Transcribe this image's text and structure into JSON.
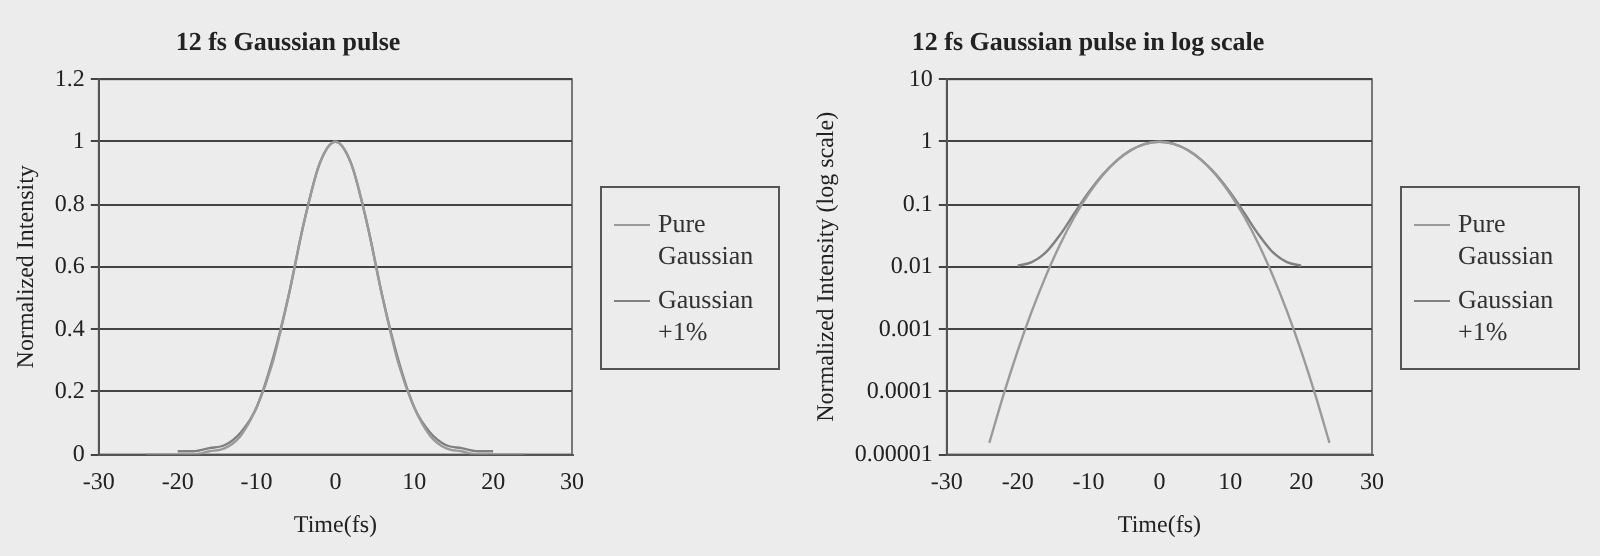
{
  "chart_data": [
    {
      "type": "line",
      "title": "12 fs Gaussian pulse",
      "xlabel": "Time(fs)",
      "ylabel": "Normalized Intensity",
      "xlim": [
        -30,
        30
      ],
      "xticks": [
        -30,
        -20,
        -10,
        0,
        10,
        20,
        30
      ],
      "ylim": [
        0,
        1.2
      ],
      "yticks": [
        0,
        0.2,
        0.4,
        0.6,
        0.8,
        1,
        1.2
      ],
      "grid": "y",
      "legend": "right",
      "series": [
        {
          "name": "Pure Gaussian",
          "color": "#9a9a9a",
          "x": [
            -24,
            -22,
            -20,
            -18,
            -16,
            -14,
            -12,
            -10,
            -8,
            -6,
            -4,
            -2,
            0,
            2,
            4,
            6,
            8,
            10,
            12,
            14,
            16,
            18,
            20,
            22,
            24
          ],
          "values": [
            0,
            0,
            0,
            0,
            0.01,
            0.02,
            0.06,
            0.15,
            0.29,
            0.5,
            0.74,
            0.93,
            1,
            0.93,
            0.74,
            0.5,
            0.29,
            0.15,
            0.06,
            0.02,
            0.01,
            0,
            0,
            0,
            0
          ]
        },
        {
          "name": "Gaussian +1%",
          "color": "#808080",
          "x": [
            -20,
            -18,
            -16,
            -14,
            -12,
            -10,
            -8,
            -6,
            -4,
            -2,
            0,
            2,
            4,
            6,
            8,
            10,
            12,
            14,
            16,
            18,
            20
          ],
          "values": [
            0.01,
            0.01,
            0.02,
            0.03,
            0.07,
            0.15,
            0.3,
            0.5,
            0.74,
            0.93,
            1,
            0.93,
            0.74,
            0.5,
            0.3,
            0.15,
            0.07,
            0.03,
            0.02,
            0.01,
            0.01
          ]
        }
      ]
    },
    {
      "type": "line",
      "title": "12 fs Gaussian pulse in log scale",
      "xlabel": "Time(fs)",
      "ylabel": "Normalized Intensity (log scale)",
      "log": "y",
      "xlim": [
        -30,
        30
      ],
      "xticks": [
        -30,
        -20,
        -10,
        0,
        10,
        20,
        30
      ],
      "ylim": [
        1e-05,
        10
      ],
      "yticks": [
        {
          "value": 1e-05,
          "label": "0.00001"
        },
        {
          "value": 0.0001,
          "label": "0.0001"
        },
        {
          "value": 0.001,
          "label": "0.001"
        },
        0.01,
        0.1,
        1,
        10
      ],
      "grid": "y",
      "legend": "right",
      "series": [
        {
          "name": "Pure Gaussian",
          "color": "#9a9a9a",
          "x": [
            -24,
            -22,
            -20,
            -18,
            -16,
            -14,
            -12,
            -10,
            -8,
            -6,
            -4,
            -2,
            0,
            2,
            4,
            6,
            8,
            10,
            12,
            14,
            16,
            18,
            20,
            22,
            24
          ],
          "values": [
            1.53e-05,
            8.97e-05,
            0.000452,
            0.00195,
            0.00723,
            0.023,
            0.0625,
            0.146,
            0.292,
            0.5,
            0.735,
            0.926,
            1,
            0.926,
            0.735,
            0.5,
            0.292,
            0.146,
            0.0625,
            0.023,
            0.00723,
            0.00195,
            0.000452,
            8.97e-05,
            1.53e-05
          ]
        },
        {
          "name": "Gaussian +1%",
          "color": "#808080",
          "x": [
            -20,
            -18,
            -16,
            -14,
            -12,
            -10,
            -8,
            -6,
            -4,
            -2,
            0,
            2,
            4,
            6,
            8,
            10,
            12,
            14,
            16,
            18,
            20
          ],
          "values": [
            0.0104,
            0.0119,
            0.0171,
            0.0327,
            0.0718,
            0.154,
            0.299,
            0.505,
            0.738,
            0.927,
            1,
            0.927,
            0.738,
            0.505,
            0.299,
            0.154,
            0.0718,
            0.0327,
            0.0171,
            0.0119,
            0.0104
          ]
        }
      ]
    }
  ]
}
